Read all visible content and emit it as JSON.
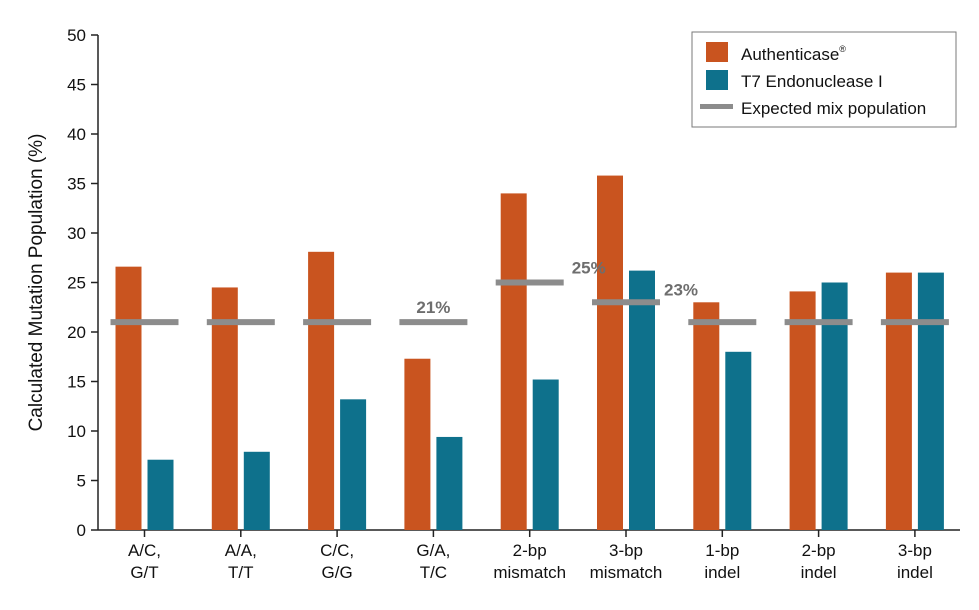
{
  "chart_data": {
    "type": "bar",
    "categories": [
      [
        "A/C,",
        "G/T"
      ],
      [
        "A/A,",
        "T/T"
      ],
      [
        "C/C,",
        "G/G"
      ],
      [
        "G/A,",
        "T/C"
      ],
      [
        "2-bp",
        "mismatch"
      ],
      [
        "3-bp",
        "mismatch"
      ],
      [
        "1-bp",
        "indel"
      ],
      [
        "2-bp",
        "indel"
      ],
      [
        "3-bp",
        "indel"
      ]
    ],
    "series": [
      {
        "name": "Authenticase",
        "superscript": "®",
        "color": "#c9541f",
        "values": [
          26.6,
          24.5,
          28.1,
          17.3,
          34.0,
          35.8,
          23.0,
          24.1,
          26.0
        ]
      },
      {
        "name": "T7 Endonuclease I",
        "color": "#0e718c",
        "values": [
          7.1,
          7.9,
          13.2,
          9.4,
          15.2,
          26.2,
          18.0,
          25.0,
          26.0
        ]
      }
    ],
    "expected": {
      "name": "Expected mix population",
      "color": "#8c8c8c",
      "values": [
        21,
        21,
        21,
        21,
        25,
        23,
        21,
        21,
        21
      ]
    },
    "annotations": [
      {
        "category_index": 3,
        "text": "21%"
      },
      {
        "category_index": 4,
        "text": "25%"
      },
      {
        "category_index": 5,
        "text": "23%"
      }
    ],
    "ylabel": "Calculated Mutation Population (%)",
    "xlabel": "",
    "ylim": [
      0,
      50
    ],
    "yticks": [
      0,
      5,
      10,
      15,
      20,
      25,
      30,
      35,
      40,
      45,
      50
    ],
    "legend_position": "top-right",
    "grid": false
  }
}
